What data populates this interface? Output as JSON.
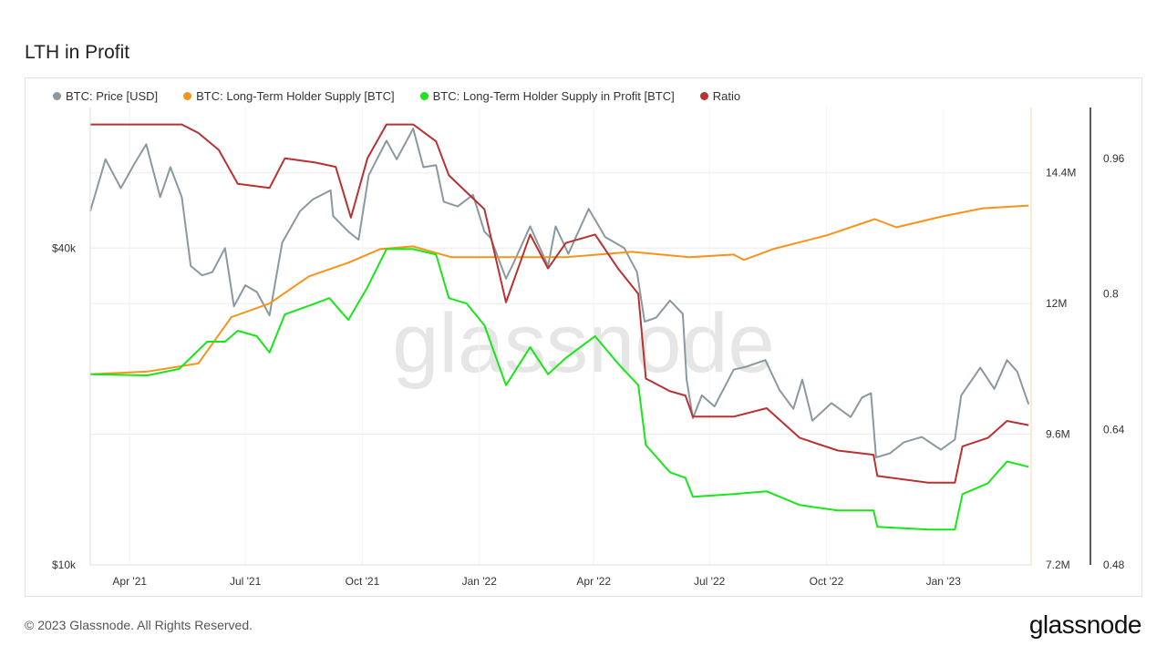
{
  "page": {
    "title": "LTH in Profit",
    "footer": "© 2023 Glassnode. All Rights Reserved.",
    "brand": "glassnode",
    "watermark": "glassnode"
  },
  "colors": {
    "price": "#8a99a0",
    "supply": "#f7931a",
    "profit": "#19e619",
    "ratio": "#b83232",
    "grid": "#ececec",
    "axis_line": "#222222",
    "axis_line_secondary": "#f0d9a8"
  },
  "chart_data": {
    "type": "line",
    "title": "LTH in Profit",
    "x_range": [
      "2021-03-01",
      "2023-03-11"
    ],
    "x_ticks": [
      {
        "date": "2021-04-01",
        "label": "Apr '21"
      },
      {
        "date": "2021-07-01",
        "label": "Jul '21"
      },
      {
        "date": "2021-10-01",
        "label": "Oct '21"
      },
      {
        "date": "2022-01-01",
        "label": "Jan '22"
      },
      {
        "date": "2022-04-01",
        "label": "Apr '22"
      },
      {
        "date": "2022-07-01",
        "label": "Jul '22"
      },
      {
        "date": "2022-10-01",
        "label": "Oct '22"
      },
      {
        "date": "2023-01-01",
        "label": "Jan '23"
      }
    ],
    "axes": {
      "price": {
        "scale": "log",
        "range": [
          10000,
          74000
        ],
        "ticks": [
          {
            "value": 10000,
            "label": "$10k"
          },
          {
            "value": 40000,
            "label": "$40k"
          }
        ]
      },
      "supply": {
        "scale": "linear",
        "range": [
          7200000,
          15600000
        ],
        "ticks": [
          {
            "value": 7200000,
            "label": "7.2M"
          },
          {
            "value": 9600000,
            "label": "9.6M"
          },
          {
            "value": 12000000,
            "label": "12M"
          },
          {
            "value": 14400000,
            "label": "14.4M"
          }
        ]
      },
      "ratio": {
        "scale": "linear",
        "range": [
          0.48,
          1.02
        ],
        "ticks": [
          {
            "value": 0.48,
            "label": "0.48"
          },
          {
            "value": 0.64,
            "label": "0.64"
          },
          {
            "value": 0.8,
            "label": "0.8"
          },
          {
            "value": 0.96,
            "label": "0.96"
          }
        ]
      }
    },
    "grid": true,
    "legend_placement": "top-left",
    "series": [
      {
        "name": "BTC: Price [USD]",
        "axis": "price",
        "points": [
          [
            "2021-03-01",
            47000
          ],
          [
            "2021-03-13",
            59000
          ],
          [
            "2021-03-25",
            52000
          ],
          [
            "2021-04-05",
            58000
          ],
          [
            "2021-04-14",
            63000
          ],
          [
            "2021-04-25",
            50000
          ],
          [
            "2021-05-03",
            57000
          ],
          [
            "2021-05-12",
            50000
          ],
          [
            "2021-05-19",
            37000
          ],
          [
            "2021-05-28",
            35500
          ],
          [
            "2021-06-05",
            36000
          ],
          [
            "2021-06-15",
            40000
          ],
          [
            "2021-06-22",
            31000
          ],
          [
            "2021-07-01",
            34000
          ],
          [
            "2021-07-10",
            33000
          ],
          [
            "2021-07-20",
            29800
          ],
          [
            "2021-07-30",
            41000
          ],
          [
            "2021-08-13",
            47000
          ],
          [
            "2021-08-23",
            49500
          ],
          [
            "2021-09-06",
            51500
          ],
          [
            "2021-09-08",
            46000
          ],
          [
            "2021-09-20",
            43000
          ],
          [
            "2021-09-28",
            41500
          ],
          [
            "2021-10-06",
            55000
          ],
          [
            "2021-10-20",
            64000
          ],
          [
            "2021-10-28",
            59000
          ],
          [
            "2021-11-10",
            67500
          ],
          [
            "2021-11-18",
            57000
          ],
          [
            "2021-11-28",
            57500
          ],
          [
            "2021-12-04",
            49000
          ],
          [
            "2021-12-15",
            48000
          ],
          [
            "2021-12-27",
            50500
          ],
          [
            "2022-01-05",
            43000
          ],
          [
            "2022-01-10",
            41800
          ],
          [
            "2022-01-22",
            35000
          ],
          [
            "2022-01-28",
            37500
          ],
          [
            "2022-02-10",
            44000
          ],
          [
            "2022-02-24",
            37000
          ],
          [
            "2022-03-02",
            44000
          ],
          [
            "2022-03-12",
            39000
          ],
          [
            "2022-03-28",
            47500
          ],
          [
            "2022-04-10",
            42000
          ],
          [
            "2022-04-25",
            40000
          ],
          [
            "2022-05-05",
            36000
          ],
          [
            "2022-05-11",
            29000
          ],
          [
            "2022-05-20",
            29500
          ],
          [
            "2022-05-31",
            31800
          ],
          [
            "2022-06-10",
            30000
          ],
          [
            "2022-06-13",
            22500
          ],
          [
            "2022-06-18",
            19000
          ],
          [
            "2022-06-25",
            21000
          ],
          [
            "2022-07-05",
            20000
          ],
          [
            "2022-07-20",
            23500
          ],
          [
            "2022-07-30",
            23800
          ],
          [
            "2022-08-14",
            24500
          ],
          [
            "2022-08-25",
            21500
          ],
          [
            "2022-09-05",
            19800
          ],
          [
            "2022-09-12",
            22500
          ],
          [
            "2022-09-20",
            18800
          ],
          [
            "2022-10-05",
            20300
          ],
          [
            "2022-10-20",
            19100
          ],
          [
            "2022-10-29",
            20800
          ],
          [
            "2022-11-05",
            21200
          ],
          [
            "2022-11-09",
            16000
          ],
          [
            "2022-11-20",
            16300
          ],
          [
            "2022-12-01",
            17100
          ],
          [
            "2022-12-15",
            17500
          ],
          [
            "2022-12-30",
            16550
          ],
          [
            "2023-01-10",
            17300
          ],
          [
            "2023-01-15",
            21000
          ],
          [
            "2023-01-30",
            23700
          ],
          [
            "2023-02-10",
            21600
          ],
          [
            "2023-02-20",
            24500
          ],
          [
            "2023-02-28",
            23300
          ],
          [
            "2023-03-09",
            20200
          ]
        ]
      },
      {
        "name": "BTC: Long-Term Holder Supply [BTC]",
        "axis": "supply",
        "points": [
          [
            "2021-03-01",
            10700000
          ],
          [
            "2021-04-15",
            10750000
          ],
          [
            "2021-05-25",
            10900000
          ],
          [
            "2021-06-20",
            11750000
          ],
          [
            "2021-07-20",
            12000000
          ],
          [
            "2021-08-20",
            12500000
          ],
          [
            "2021-09-20",
            12750000
          ],
          [
            "2021-10-15",
            13000000
          ],
          [
            "2021-11-10",
            13050000
          ],
          [
            "2021-12-10",
            12850000
          ],
          [
            "2022-01-20",
            12850000
          ],
          [
            "2022-03-10",
            12850000
          ],
          [
            "2022-05-01",
            12950000
          ],
          [
            "2022-06-15",
            12850000
          ],
          [
            "2022-07-20",
            12900000
          ],
          [
            "2022-07-28",
            12800000
          ],
          [
            "2022-08-20",
            13000000
          ],
          [
            "2022-10-01",
            13250000
          ],
          [
            "2022-11-08",
            13550000
          ],
          [
            "2022-11-25",
            13400000
          ],
          [
            "2022-12-31",
            13600000
          ],
          [
            "2023-02-01",
            13750000
          ],
          [
            "2023-03-09",
            13800000
          ]
        ]
      },
      {
        "name": "BTC: Long-Term Holder Supply in Profit [BTC]",
        "axis": "supply",
        "points": [
          [
            "2021-03-01",
            10700000
          ],
          [
            "2021-04-15",
            10680000
          ],
          [
            "2021-05-10",
            10800000
          ],
          [
            "2021-06-01",
            11300000
          ],
          [
            "2021-06-15",
            11300000
          ],
          [
            "2021-06-25",
            11500000
          ],
          [
            "2021-07-10",
            11400000
          ],
          [
            "2021-07-20",
            11100000
          ],
          [
            "2021-08-01",
            11800000
          ],
          [
            "2021-08-25",
            12000000
          ],
          [
            "2021-09-05",
            12100000
          ],
          [
            "2021-09-20",
            11700000
          ],
          [
            "2021-10-05",
            12300000
          ],
          [
            "2021-10-20",
            13000000
          ],
          [
            "2021-11-10",
            13000000
          ],
          [
            "2021-11-28",
            12900000
          ],
          [
            "2021-12-08",
            12100000
          ],
          [
            "2021-12-22",
            12000000
          ],
          [
            "2022-01-05",
            11600000
          ],
          [
            "2022-01-22",
            10500000
          ],
          [
            "2022-02-10",
            11200000
          ],
          [
            "2022-02-24",
            10700000
          ],
          [
            "2022-03-10",
            11000000
          ],
          [
            "2022-04-02",
            11400000
          ],
          [
            "2022-04-20",
            10900000
          ],
          [
            "2022-05-06",
            10500000
          ],
          [
            "2022-05-12",
            9400000
          ],
          [
            "2022-05-31",
            8900000
          ],
          [
            "2022-06-12",
            8800000
          ],
          [
            "2022-06-18",
            8450000
          ],
          [
            "2022-07-20",
            8500000
          ],
          [
            "2022-08-15",
            8550000
          ],
          [
            "2022-09-10",
            8300000
          ],
          [
            "2022-10-10",
            8200000
          ],
          [
            "2022-11-07",
            8200000
          ],
          [
            "2022-11-10",
            7900000
          ],
          [
            "2022-12-20",
            7850000
          ],
          [
            "2023-01-10",
            7850000
          ],
          [
            "2023-01-16",
            8500000
          ],
          [
            "2023-02-05",
            8700000
          ],
          [
            "2023-02-20",
            9100000
          ],
          [
            "2023-03-09",
            9000000
          ]
        ]
      },
      {
        "name": "Ratio",
        "axis": "ratio",
        "points": [
          [
            "2021-03-01",
            1.0
          ],
          [
            "2021-05-12",
            1.0
          ],
          [
            "2021-05-25",
            0.99
          ],
          [
            "2021-06-10",
            0.97
          ],
          [
            "2021-06-25",
            0.93
          ],
          [
            "2021-07-20",
            0.925
          ],
          [
            "2021-08-01",
            0.96
          ],
          [
            "2021-08-25",
            0.955
          ],
          [
            "2021-09-10",
            0.95
          ],
          [
            "2021-09-22",
            0.89
          ],
          [
            "2021-10-05",
            0.96
          ],
          [
            "2021-10-20",
            1.0
          ],
          [
            "2021-11-10",
            1.0
          ],
          [
            "2021-11-28",
            0.98
          ],
          [
            "2021-12-08",
            0.94
          ],
          [
            "2021-12-22",
            0.92
          ],
          [
            "2022-01-05",
            0.9
          ],
          [
            "2022-01-22",
            0.79
          ],
          [
            "2022-02-10",
            0.87
          ],
          [
            "2022-02-24",
            0.83
          ],
          [
            "2022-03-10",
            0.86
          ],
          [
            "2022-04-02",
            0.87
          ],
          [
            "2022-04-20",
            0.83
          ],
          [
            "2022-05-06",
            0.8
          ],
          [
            "2022-05-12",
            0.7
          ],
          [
            "2022-05-31",
            0.685
          ],
          [
            "2022-06-12",
            0.68
          ],
          [
            "2022-06-18",
            0.655
          ],
          [
            "2022-07-20",
            0.655
          ],
          [
            "2022-08-15",
            0.665
          ],
          [
            "2022-09-10",
            0.63
          ],
          [
            "2022-10-10",
            0.615
          ],
          [
            "2022-11-07",
            0.61
          ],
          [
            "2022-11-10",
            0.585
          ],
          [
            "2022-12-20",
            0.577
          ],
          [
            "2023-01-10",
            0.577
          ],
          [
            "2023-01-16",
            0.62
          ],
          [
            "2023-02-05",
            0.63
          ],
          [
            "2023-02-20",
            0.65
          ],
          [
            "2023-03-09",
            0.645
          ]
        ]
      }
    ]
  }
}
